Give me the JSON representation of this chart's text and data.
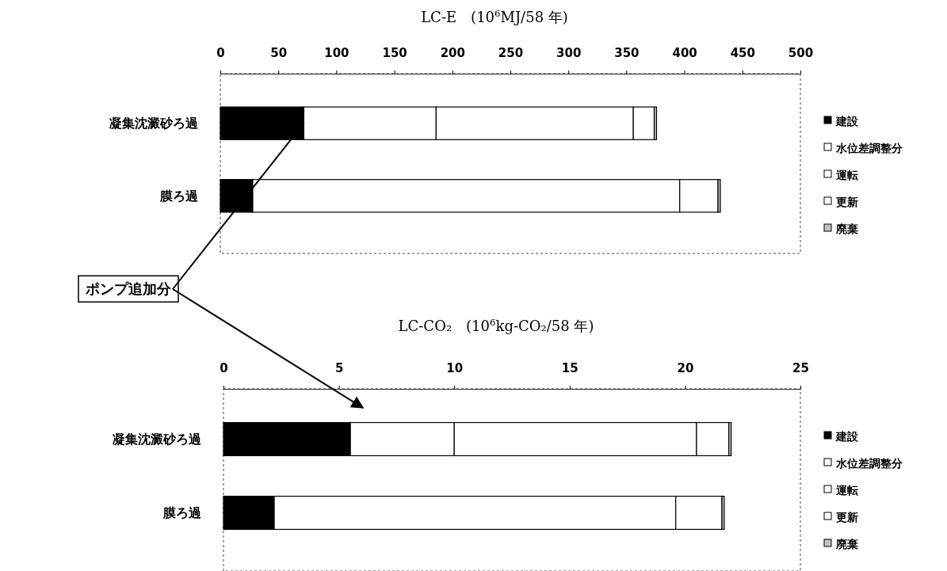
{
  "chart_data": [
    {
      "type": "bar",
      "orientation": "horizontal",
      "stacked": true,
      "title": "LC-E　(10$^{6}$MJ/58 年)",
      "categories": [
        "凝集沈澱砂ろ過",
        "膜ろ過"
      ],
      "series": [
        {
          "name": "建設",
          "color": "#000000",
          "values": [
            72,
            28
          ]
        },
        {
          "name": "水位差調整分",
          "color": "#ffffff",
          "values": [
            114,
            0
          ]
        },
        {
          "name": "運転",
          "color": "#ffffff",
          "values": [
            170,
            368
          ]
        },
        {
          "name": "更新",
          "color": "#ffffff",
          "values": [
            18,
            33
          ]
        },
        {
          "name": "廃棄",
          "color": "#c0c0c0",
          "values": [
            2,
            2
          ]
        }
      ],
      "xlim": [
        0,
        500
      ],
      "xticks": [
        0,
        50,
        100,
        150,
        200,
        250,
        300,
        350,
        400,
        450,
        500
      ],
      "legend": "right",
      "annotations": [
        {
          "text": "ポンプ追加分",
          "x": 72,
          "y": "凝集沈澱砂ろ過"
        }
      ]
    },
    {
      "type": "bar",
      "orientation": "horizontal",
      "stacked": true,
      "title": "LC-CO₂　(10$^{6}$kg-CO₂/58 年)",
      "categories": [
        "凝集沈澱砂ろ過",
        "膜ろ過"
      ],
      "series": [
        {
          "name": "建設",
          "color": "#000000",
          "values": [
            5.5,
            2.2
          ]
        },
        {
          "name": "水位差調整分",
          "color": "#ffffff",
          "values": [
            4.5,
            0
          ]
        },
        {
          "name": "運転",
          "color": "#ffffff",
          "values": [
            10.5,
            17.4
          ]
        },
        {
          "name": "更新",
          "color": "#ffffff",
          "values": [
            1.4,
            2.0
          ]
        },
        {
          "name": "廃棄",
          "color": "#c0c0c0",
          "values": [
            0.1,
            0.1
          ]
        }
      ],
      "xlim": [
        0,
        25
      ],
      "xticks": [
        0,
        5,
        10,
        15,
        20,
        25
      ],
      "legend": "right"
    }
  ]
}
